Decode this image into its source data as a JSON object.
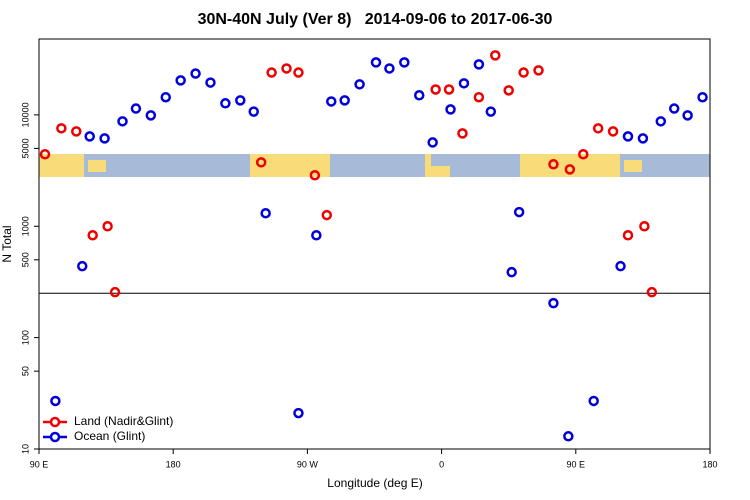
{
  "chart_data": {
    "type": "scatter",
    "title": "30N-40N July (Ver 8)   2014-09-06 to 2017-06-30",
    "x_label": "Longitude (deg E)",
    "y_label": "N Total",
    "y_log": true,
    "xlim": [
      90,
      540
    ],
    "ylim": [
      10,
      48000
    ],
    "xticks": [
      {
        "value": 90,
        "label": "90 E"
      },
      180,
      {
        "value": 270,
        "label": "90 W"
      },
      {
        "value": 360,
        "label": "0"
      },
      {
        "value": 450,
        "label": "90 E"
      },
      {
        "value": 540,
        "label": "180"
      }
    ],
    "yticks": [
      10,
      50,
      100,
      500,
      1000,
      5000,
      10000
    ],
    "reference_line": 250,
    "legend": "bottom-left",
    "series": [
      {
        "name": "Land (Nadir&Glint)",
        "color": "#ee0000",
        "x": [
          94,
          105,
          115,
          126,
          136,
          141,
          239,
          246,
          256,
          264,
          275,
          283,
          356,
          365,
          374,
          385,
          396,
          405,
          415,
          425,
          435,
          446,
          455,
          465,
          475,
          485,
          496,
          501
        ],
        "values": [
          4430,
          7570,
          7110,
          830,
          1000,
          256,
          3750,
          24000,
          26100,
          24000,
          2870,
          1260,
          16900,
          16900,
          6820,
          14400,
          34200,
          16600,
          24000,
          25100,
          3600,
          3240,
          4430,
          7570,
          7110,
          830,
          1000,
          256
        ]
      },
      {
        "name": "Ocean (Glint)",
        "color": "#0000dd",
        "x": [
          101,
          119,
          124,
          134,
          146,
          155,
          165,
          175,
          185,
          195,
          205,
          215,
          225,
          234,
          242,
          264,
          276,
          286,
          295,
          305,
          316,
          325,
          335,
          345,
          354,
          366,
          375,
          385,
          393,
          407,
          412,
          435,
          445,
          462,
          480,
          485,
          495,
          507,
          516,
          525,
          535
        ],
        "values": [
          27,
          438,
          6410,
          6150,
          8750,
          11400,
          9900,
          14400,
          20400,
          23500,
          19500,
          12700,
          13500,
          10700,
          1310,
          21,
          830,
          13200,
          13500,
          18800,
          29600,
          26100,
          29600,
          15000,
          5660,
          11200,
          19200,
          28400,
          10700,
          387,
          1340,
          204,
          13,
          27,
          438,
          6410,
          6150,
          8750,
          11400,
          9900,
          14400
        ]
      }
    ]
  }
}
